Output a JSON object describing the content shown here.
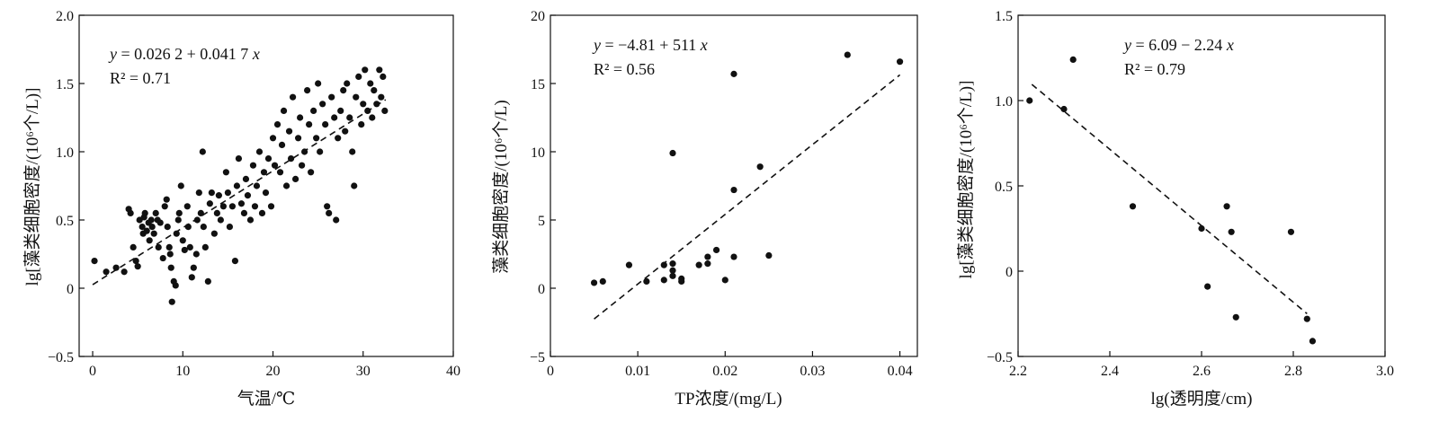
{
  "chart_data": [
    {
      "type": "scatter",
      "xlabel": "气温/℃",
      "ylabel": "lg[藻类细胞密度/(10⁶个/L)]",
      "xlim": [
        -1.5,
        40
      ],
      "ylim": [
        -0.5,
        2.0
      ],
      "xticks": [
        0,
        10,
        20,
        30,
        40
      ],
      "yticks": [
        -0.5,
        0,
        0.5,
        1.0,
        1.5,
        2.0
      ],
      "xtick_labels": [
        "0",
        "10",
        "20",
        "30",
        "40"
      ],
      "ytick_labels": [
        "−0.5",
        "0",
        "0.5",
        "1.0",
        "1.5",
        "2.0"
      ],
      "equation": "y = 0.026 2 + 0.041 7 x",
      "r2": "R² = 0.71",
      "fit": {
        "intercept": 0.0262,
        "slope": 0.0417,
        "x_range": [
          0,
          32.5
        ]
      },
      "points": [
        [
          0.2,
          0.2
        ],
        [
          1.5,
          0.12
        ],
        [
          2.6,
          0.15
        ],
        [
          3.5,
          0.12
        ],
        [
          4.0,
          0.58
        ],
        [
          4.2,
          0.55
        ],
        [
          4.5,
          0.3
        ],
        [
          4.8,
          0.2
        ],
        [
          5.0,
          0.16
        ],
        [
          5.2,
          0.5
        ],
        [
          5.5,
          0.45
        ],
        [
          5.6,
          0.4
        ],
        [
          5.7,
          0.52
        ],
        [
          5.8,
          0.55
        ],
        [
          6.0,
          0.42
        ],
        [
          6.2,
          0.48
        ],
        [
          6.3,
          0.35
        ],
        [
          6.5,
          0.5
        ],
        [
          6.6,
          0.45
        ],
        [
          6.8,
          0.4
        ],
        [
          7.0,
          0.55
        ],
        [
          7.2,
          0.5
        ],
        [
          7.3,
          0.3
        ],
        [
          7.5,
          0.48
        ],
        [
          7.8,
          0.22
        ],
        [
          8.0,
          0.6
        ],
        [
          8.2,
          0.65
        ],
        [
          8.3,
          0.45
        ],
        [
          8.5,
          0.3
        ],
        [
          8.6,
          0.25
        ],
        [
          8.7,
          0.15
        ],
        [
          8.8,
          -0.1
        ],
        [
          9.0,
          0.05
        ],
        [
          9.2,
          0.02
        ],
        [
          9.3,
          0.4
        ],
        [
          9.5,
          0.5
        ],
        [
          9.6,
          0.55
        ],
        [
          9.8,
          0.75
        ],
        [
          10.0,
          0.35
        ],
        [
          10.2,
          0.28
        ],
        [
          10.5,
          0.6
        ],
        [
          10.6,
          0.45
        ],
        [
          10.8,
          0.3
        ],
        [
          11.0,
          0.08
        ],
        [
          11.2,
          0.15
        ],
        [
          11.5,
          0.25
        ],
        [
          11.6,
          0.5
        ],
        [
          11.8,
          0.7
        ],
        [
          12.0,
          0.55
        ],
        [
          12.2,
          1.0
        ],
        [
          12.3,
          0.45
        ],
        [
          12.5,
          0.3
        ],
        [
          12.8,
          0.05
        ],
        [
          13.0,
          0.62
        ],
        [
          13.2,
          0.7
        ],
        [
          13.5,
          0.4
        ],
        [
          13.8,
          0.55
        ],
        [
          14.0,
          0.68
        ],
        [
          14.2,
          0.5
        ],
        [
          14.5,
          0.6
        ],
        [
          14.8,
          0.85
        ],
        [
          15.0,
          0.7
        ],
        [
          15.2,
          0.45
        ],
        [
          15.5,
          0.6
        ],
        [
          15.8,
          0.2
        ],
        [
          16.0,
          0.75
        ],
        [
          16.2,
          0.95
        ],
        [
          16.5,
          0.62
        ],
        [
          16.8,
          0.55
        ],
        [
          17.0,
          0.8
        ],
        [
          17.2,
          0.68
        ],
        [
          17.5,
          0.5
        ],
        [
          17.8,
          0.9
        ],
        [
          18.0,
          0.6
        ],
        [
          18.2,
          0.75
        ],
        [
          18.5,
          1.0
        ],
        [
          18.8,
          0.55
        ],
        [
          19.0,
          0.85
        ],
        [
          19.2,
          0.7
        ],
        [
          19.5,
          0.95
        ],
        [
          19.8,
          0.6
        ],
        [
          20.0,
          1.1
        ],
        [
          20.2,
          0.9
        ],
        [
          20.5,
          1.2
        ],
        [
          20.8,
          0.85
        ],
        [
          21.0,
          1.05
        ],
        [
          21.2,
          1.3
        ],
        [
          21.5,
          0.75
        ],
        [
          21.8,
          1.15
        ],
        [
          22.0,
          0.95
        ],
        [
          22.2,
          1.4
        ],
        [
          22.5,
          0.8
        ],
        [
          22.8,
          1.1
        ],
        [
          23.0,
          1.25
        ],
        [
          23.2,
          0.9
        ],
        [
          23.5,
          1.0
        ],
        [
          23.8,
          1.45
        ],
        [
          24.0,
          1.2
        ],
        [
          24.2,
          0.85
        ],
        [
          24.5,
          1.3
        ],
        [
          24.8,
          1.1
        ],
        [
          25.0,
          1.5
        ],
        [
          25.2,
          1.0
        ],
        [
          25.5,
          1.35
        ],
        [
          25.8,
          1.2
        ],
        [
          26.0,
          0.6
        ],
        [
          26.2,
          0.55
        ],
        [
          26.5,
          1.4
        ],
        [
          26.8,
          1.25
        ],
        [
          27.0,
          0.5
        ],
        [
          27.2,
          1.1
        ],
        [
          27.5,
          1.3
        ],
        [
          27.8,
          1.45
        ],
        [
          28.0,
          1.15
        ],
        [
          28.2,
          1.5
        ],
        [
          28.5,
          1.25
        ],
        [
          28.8,
          1.0
        ],
        [
          29.0,
          0.75
        ],
        [
          29.2,
          1.4
        ],
        [
          29.5,
          1.55
        ],
        [
          29.8,
          1.2
        ],
        [
          30.0,
          1.35
        ],
        [
          30.2,
          1.6
        ],
        [
          30.5,
          1.3
        ],
        [
          30.8,
          1.5
        ],
        [
          31.0,
          1.25
        ],
        [
          31.2,
          1.45
        ],
        [
          31.5,
          1.35
        ],
        [
          31.8,
          1.6
        ],
        [
          32.0,
          1.4
        ],
        [
          32.2,
          1.55
        ],
        [
          32.4,
          1.3
        ]
      ]
    },
    {
      "type": "scatter",
      "xlabel": "TP浓度/(mg/L)",
      "ylabel": "藻类细胞密度/(10⁶个/L)",
      "xlim": [
        0,
        0.042
      ],
      "ylim": [
        -5,
        20
      ],
      "xticks": [
        0,
        0.01,
        0.02,
        0.03,
        0.04
      ],
      "yticks": [
        -5,
        0,
        5,
        10,
        15,
        20
      ],
      "xtick_labels": [
        "0",
        "0.01",
        "0.02",
        "0.03",
        "0.04"
      ],
      "ytick_labels": [
        "−5",
        "0",
        "5",
        "10",
        "15",
        "20"
      ],
      "equation": "y = −4.81 + 511 x",
      "r2": "R² = 0.56",
      "fit": {
        "intercept": -4.81,
        "slope": 511,
        "x_range": [
          0.005,
          0.04
        ]
      },
      "points": [
        [
          0.005,
          0.4
        ],
        [
          0.006,
          0.5
        ],
        [
          0.009,
          1.7
        ],
        [
          0.011,
          0.5
        ],
        [
          0.013,
          0.6
        ],
        [
          0.013,
          1.7
        ],
        [
          0.014,
          0.9
        ],
        [
          0.014,
          1.3
        ],
        [
          0.014,
          1.8
        ],
        [
          0.014,
          9.9
        ],
        [
          0.015,
          0.7
        ],
        [
          0.015,
          0.5
        ],
        [
          0.017,
          1.7
        ],
        [
          0.018,
          1.8
        ],
        [
          0.018,
          2.3
        ],
        [
          0.019,
          2.8
        ],
        [
          0.02,
          0.6
        ],
        [
          0.021,
          2.3
        ],
        [
          0.021,
          7.2
        ],
        [
          0.021,
          15.7
        ],
        [
          0.024,
          8.9
        ],
        [
          0.025,
          2.4
        ],
        [
          0.034,
          17.1
        ],
        [
          0.04,
          16.6
        ]
      ]
    },
    {
      "type": "scatter",
      "xlabel": "lg(透明度/cm)",
      "ylabel": "lg[藻类细胞密度/(10⁶个/L)]",
      "xlim": [
        2.2,
        3.0
      ],
      "ylim": [
        -0.5,
        1.5
      ],
      "xticks": [
        2.2,
        2.4,
        2.6,
        2.8,
        3.0
      ],
      "yticks": [
        -0.5,
        0,
        0.5,
        1.0,
        1.5
      ],
      "xtick_labels": [
        "2.2",
        "2.4",
        "2.6",
        "2.8",
        "3.0"
      ],
      "ytick_labels": [
        "−0.5",
        "0",
        "0.5",
        "1.0",
        "1.5"
      ],
      "equation": "y = 6.09 − 2.24 x",
      "r2": "R² = 0.79",
      "fit": {
        "intercept": 6.09,
        "slope": -2.24,
        "x_range": [
          2.23,
          2.83
        ]
      },
      "points": [
        [
          2.225,
          1.0
        ],
        [
          2.3,
          0.95
        ],
        [
          2.32,
          1.24
        ],
        [
          2.45,
          0.38
        ],
        [
          2.6,
          0.25
        ],
        [
          2.613,
          -0.09
        ],
        [
          2.655,
          0.38
        ],
        [
          2.665,
          0.23
        ],
        [
          2.675,
          -0.27
        ],
        [
          2.795,
          0.23
        ],
        [
          2.83,
          -0.28
        ],
        [
          2.842,
          -0.41
        ]
      ]
    }
  ]
}
